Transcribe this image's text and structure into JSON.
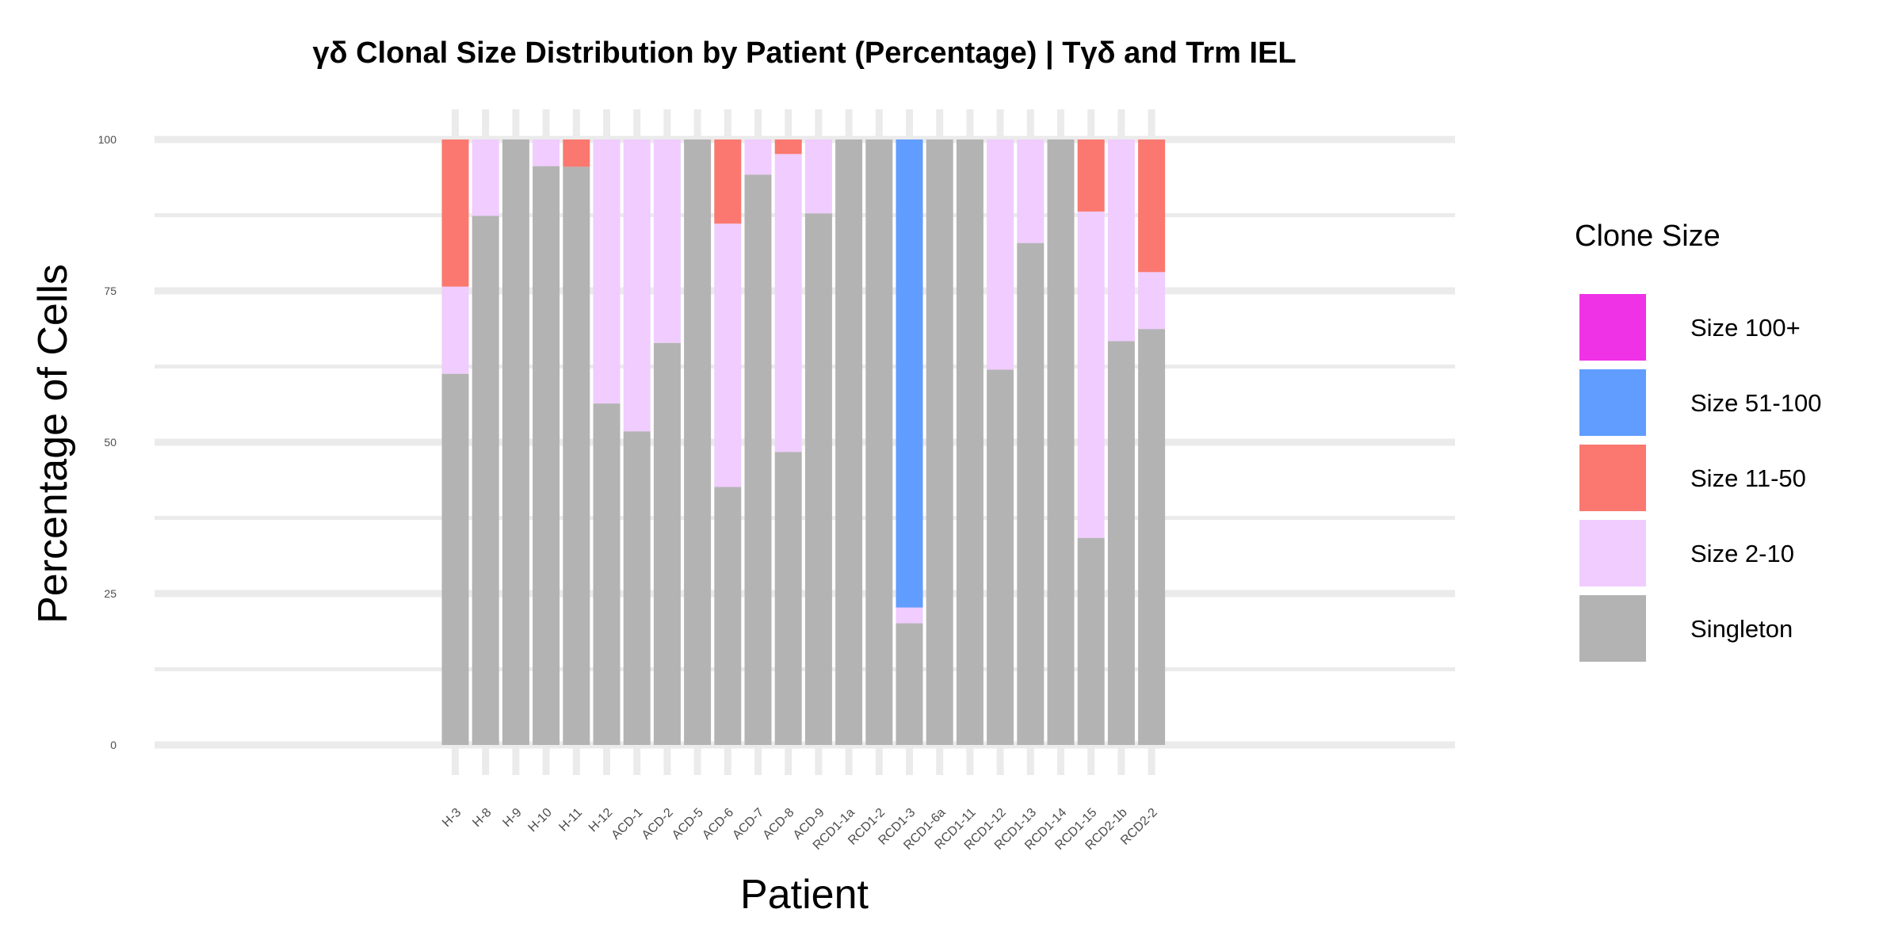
{
  "chart_data": {
    "type": "bar",
    "stacked": true,
    "title": "γδ Clonal Size Distribution by Patient (Percentage) | Tγδ and Trm IEL",
    "xlabel": "Patient",
    "ylabel": "Percentage of Cells",
    "ylim": [
      0,
      100
    ],
    "yticks": [
      0,
      25,
      50,
      75,
      100
    ],
    "grid": true,
    "legend": {
      "title": "Clone Size",
      "position": "right"
    },
    "categories": [
      "H-3",
      "H-8",
      "H-9",
      "H-10",
      "H-11",
      "H-12",
      "ACD-1",
      "ACD-2",
      "ACD-5",
      "ACD-6",
      "ACD-7",
      "ACD-8",
      "ACD-9",
      "RCD1-1a",
      "RCD1-2",
      "RCD1-3",
      "RCD1-6a",
      "RCD1-11",
      "RCD1-12",
      "RCD1-13",
      "RCD1-14",
      "RCD1-15",
      "RCD2-1b",
      "RCD2-2"
    ],
    "series": [
      {
        "name": "Singleton",
        "color": "#b3b3b3",
        "values": [
          61.3,
          87.4,
          100,
          95.6,
          95.5,
          56.4,
          51.8,
          66.4,
          100,
          42.6,
          94.2,
          48.4,
          87.8,
          100,
          100,
          20.1,
          100,
          100,
          62.0,
          82.9,
          100,
          34.2,
          66.7,
          68.7
        ]
      },
      {
        "name": "Size 2-10",
        "color": "#f0ccff",
        "values": [
          14.4,
          12.6,
          0,
          4.4,
          0,
          43.6,
          48.2,
          33.6,
          0,
          43.5,
          5.8,
          49.2,
          12.2,
          0,
          0,
          2.6,
          0,
          0,
          38.0,
          17.1,
          0,
          53.9,
          33.3,
          9.4
        ]
      },
      {
        "name": "Size 11-50",
        "color": "#fa786f",
        "values": [
          24.3,
          0,
          0,
          0,
          4.5,
          0,
          0,
          0,
          0,
          13.9,
          0,
          2.4,
          0,
          0,
          0,
          0,
          0,
          0,
          0,
          0,
          0,
          11.9,
          0,
          21.9
        ]
      },
      {
        "name": "Size 51-100",
        "color": "#619cff",
        "values": [
          0,
          0,
          0,
          0,
          0,
          0,
          0,
          0,
          0,
          0,
          0,
          0,
          0,
          0,
          0,
          77.3,
          0,
          0,
          0,
          0,
          0,
          0,
          0,
          0
        ]
      },
      {
        "name": "Size 100+",
        "color": "#f032e6",
        "values": [
          0,
          0,
          0,
          0,
          0,
          0,
          0,
          0,
          0,
          0,
          0,
          0,
          0,
          0,
          0,
          0,
          0,
          0,
          0,
          0,
          0,
          0,
          0,
          0
        ]
      }
    ],
    "legend_order": [
      "Size 100+",
      "Size 51-100",
      "Size 11-50",
      "Size 2-10",
      "Singleton"
    ]
  }
}
